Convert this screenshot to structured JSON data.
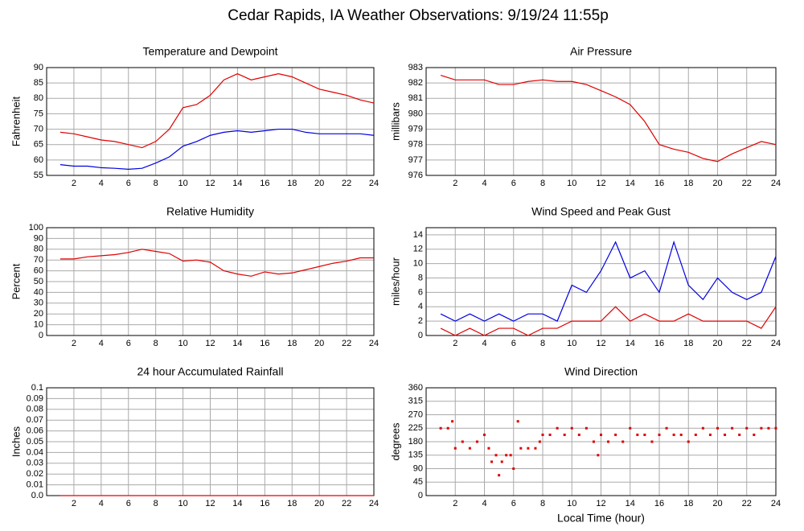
{
  "title": "Cedar Rapids, IA Weather Observations: 9/19/24 11:55p",
  "chart_data": [
    {
      "type": "line",
      "title": "Temperature and Dewpoint",
      "ylabel": "Fahrenheit",
      "x": [
        1,
        2,
        3,
        4,
        5,
        6,
        7,
        8,
        9,
        10,
        11,
        12,
        13,
        14,
        15,
        16,
        17,
        18,
        19,
        20,
        21,
        22,
        23,
        24
      ],
      "series": [
        {
          "color": "#e00000",
          "values": [
            69,
            68.5,
            67.5,
            66.5,
            66,
            65,
            64,
            66,
            70,
            77,
            78,
            81,
            86,
            88,
            86,
            87,
            88,
            87,
            85,
            83,
            82,
            81,
            79.5,
            78.5
          ]
        },
        {
          "color": "#0000e0",
          "values": [
            58.5,
            58,
            58,
            57.5,
            57.3,
            57,
            57.3,
            59,
            61,
            64.5,
            66,
            68,
            69,
            69.5,
            69,
            69.5,
            70,
            70,
            69,
            68.5,
            68.5,
            68.5,
            68.5,
            68
          ]
        }
      ],
      "xlim": [
        0,
        24
      ],
      "xticks": [
        2,
        4,
        6,
        8,
        10,
        12,
        14,
        16,
        18,
        20,
        22,
        24
      ],
      "ylim": [
        55,
        90
      ],
      "yticks": [
        55,
        60,
        65,
        70,
        75,
        80,
        85,
        90
      ],
      "grid": true
    },
    {
      "type": "line",
      "title": "Air Pressure",
      "ylabel": "millibars",
      "x": [
        1,
        2,
        3,
        4,
        5,
        6,
        7,
        8,
        9,
        10,
        11,
        12,
        13,
        14,
        15,
        16,
        17,
        18,
        19,
        20,
        21,
        22,
        23,
        24
      ],
      "series": [
        {
          "color": "#e00000",
          "values": [
            982.5,
            982.2,
            982.2,
            982.2,
            981.9,
            981.9,
            982.1,
            982.2,
            982.1,
            982.1,
            981.9,
            981.5,
            981.1,
            980.6,
            979.5,
            978,
            977.7,
            977.5,
            977.1,
            976.9,
            977.4,
            977.8,
            978.2,
            978
          ]
        }
      ],
      "xlim": [
        0,
        24
      ],
      "xticks": [
        2,
        4,
        6,
        8,
        10,
        12,
        14,
        16,
        18,
        20,
        22,
        24
      ],
      "ylim": [
        976,
        983
      ],
      "yticks": [
        976,
        977,
        978,
        979,
        980,
        981,
        982,
        983
      ],
      "grid": true
    },
    {
      "type": "line",
      "title": "Relative Humidity",
      "ylabel": "Percent",
      "x": [
        1,
        2,
        3,
        4,
        5,
        6,
        7,
        8,
        9,
        10,
        11,
        12,
        13,
        14,
        15,
        16,
        17,
        18,
        19,
        20,
        21,
        22,
        23,
        24
      ],
      "series": [
        {
          "color": "#e00000",
          "values": [
            71,
            71,
            73,
            74,
            75,
            77,
            80,
            78,
            76,
            69,
            70,
            68,
            60,
            57,
            55,
            59,
            57,
            58,
            61,
            64,
            67,
            69,
            72,
            72
          ]
        }
      ],
      "xlim": [
        0,
        24
      ],
      "xticks": [
        2,
        4,
        6,
        8,
        10,
        12,
        14,
        16,
        18,
        20,
        22,
        24
      ],
      "ylim": [
        0,
        100
      ],
      "yticks": [
        0,
        10,
        20,
        30,
        40,
        50,
        60,
        70,
        80,
        90,
        100
      ],
      "grid": true
    },
    {
      "type": "line",
      "title": "Wind Speed and Peak Gust",
      "ylabel": "miles/hour",
      "x": [
        1,
        2,
        3,
        4,
        5,
        6,
        7,
        8,
        9,
        10,
        11,
        12,
        13,
        14,
        15,
        16,
        17,
        18,
        19,
        20,
        21,
        22,
        23,
        24
      ],
      "series": [
        {
          "color": "#0000e0",
          "values": [
            3,
            2,
            3,
            2,
            3,
            2,
            3,
            3,
            2,
            7,
            6,
            9,
            13,
            8,
            9,
            6,
            13,
            7,
            5,
            8,
            6,
            5,
            6,
            11
          ]
        },
        {
          "color": "#e00000",
          "values": [
            1,
            0,
            1,
            0,
            1,
            1,
            0,
            1,
            1,
            2,
            2,
            2,
            4,
            2,
            3,
            2,
            2,
            3,
            2,
            2,
            2,
            2,
            1,
            4
          ]
        }
      ],
      "xlim": [
        0,
        24
      ],
      "xticks": [
        2,
        4,
        6,
        8,
        10,
        12,
        14,
        16,
        18,
        20,
        22,
        24
      ],
      "ylim": [
        0,
        15
      ],
      "yticks": [
        0,
        2,
        4,
        6,
        8,
        10,
        12,
        14
      ],
      "grid": true
    },
    {
      "type": "line",
      "title": "24 hour Accumulated Rainfall",
      "ylabel": "Inches",
      "x": [
        1,
        24
      ],
      "series": [
        {
          "color": "#e00000",
          "values": [
            0,
            0
          ]
        }
      ],
      "xlim": [
        0,
        24
      ],
      "xticks": [
        2,
        4,
        6,
        8,
        10,
        12,
        14,
        16,
        18,
        20,
        22,
        24
      ],
      "ylim": [
        0,
        0.1
      ],
      "yticks": [
        {
          "value": 0,
          "label": "0.0"
        },
        0.01,
        0.02,
        0.03,
        0.04,
        0.05,
        0.06,
        0.07,
        0.08,
        0.09,
        0.1
      ],
      "grid": true
    },
    {
      "type": "scatter",
      "title": "Wind Direction",
      "ylabel": "degrees",
      "xlabel": "Local Time (hour)",
      "x": [
        1,
        1.5,
        1.8,
        2,
        2.5,
        3,
        3.5,
        4,
        4.3,
        4.5,
        4.8,
        5,
        5.2,
        5.5,
        5.8,
        6,
        6.3,
        6.5,
        7,
        7.5,
        7.8,
        8,
        8.5,
        9,
        9.5,
        10,
        10.5,
        11,
        11.5,
        11.8,
        12,
        12.5,
        13,
        13.5,
        14,
        14.5,
        15,
        15.5,
        16,
        16.5,
        17,
        17.5,
        18,
        18.5,
        19,
        19.5,
        20,
        20.5,
        21,
        21.5,
        22,
        22.5,
        23,
        23.5,
        24
      ],
      "values": [
        225,
        225,
        248,
        158,
        180,
        158,
        180,
        203,
        158,
        113,
        135,
        68,
        113,
        135,
        135,
        90,
        248,
        158,
        158,
        158,
        180,
        203,
        203,
        225,
        203,
        225,
        203,
        225,
        180,
        135,
        203,
        180,
        203,
        180,
        225,
        203,
        203,
        180,
        203,
        225,
        203,
        203,
        180,
        203,
        225,
        203,
        225,
        203,
        225,
        203,
        225,
        203,
        225,
        225,
        225
      ],
      "color": "#e00000",
      "xlim": [
        0,
        24
      ],
      "xticks": [
        2,
        4,
        6,
        8,
        10,
        12,
        14,
        16,
        18,
        20,
        22,
        24
      ],
      "ylim": [
        0,
        360
      ],
      "yticks": [
        0,
        45,
        90,
        135,
        180,
        225,
        270,
        315,
        360
      ],
      "grid": true
    }
  ]
}
